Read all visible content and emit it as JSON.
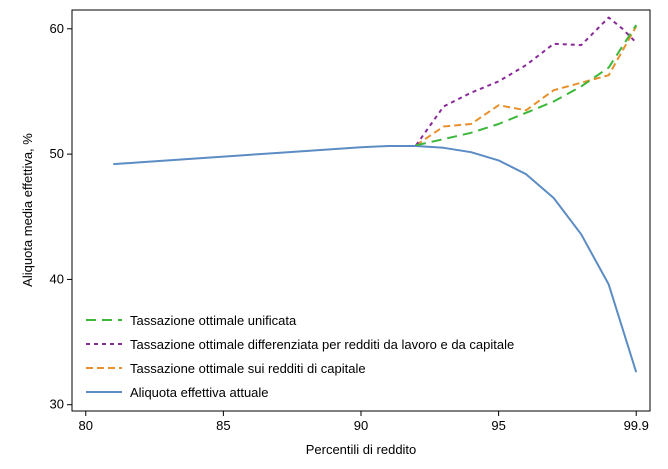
{
  "chart_data": {
    "type": "line",
    "title": "",
    "xlabel": "Percentili di reddito",
    "ylabel": "Aliquota media effettiva, %",
    "xlim": [
      79.5,
      100.5
    ],
    "ylim": [
      29.5,
      61.5
    ],
    "x_ticks": [
      80,
      85,
      90,
      95,
      100
    ],
    "x_tick_labels": [
      "80",
      "85",
      "90",
      "95",
      "99.9"
    ],
    "y_ticks": [
      30,
      40,
      50,
      60
    ],
    "y_tick_labels": [
      "30",
      "40",
      "50",
      "60"
    ],
    "grid": false,
    "legend_position": "bottom-left",
    "series": [
      {
        "name": "Tassazione ottimale unificata",
        "color": "#3cb73c",
        "dash": "10,6",
        "x": [
          92,
          93,
          94,
          95,
          96,
          97,
          98,
          99,
          100
        ],
        "y": [
          50.7,
          51.2,
          51.7,
          52.4,
          53.3,
          54.2,
          55.4,
          56.9,
          60.3
        ]
      },
      {
        "name": "Tassazione ottimale differenziata per redditi da lavoro e da capitale",
        "color": "#8a2a9a",
        "dash": "4,4",
        "x": [
          92,
          93,
          94,
          95,
          96,
          97,
          98,
          98.5,
          99,
          99.5,
          100
        ],
        "y": [
          50.7,
          53.8,
          54.9,
          55.8,
          57.1,
          58.8,
          58.7,
          59.8,
          60.9,
          60.0,
          58.9
        ]
      },
      {
        "name": "Tassazione ottimale sui redditi di capitale",
        "color": "#e8902c",
        "dash": "7,4",
        "x": [
          92,
          93,
          94,
          95,
          96,
          97,
          98,
          99,
          100
        ],
        "y": [
          50.7,
          52.2,
          52.4,
          53.9,
          53.5,
          55.1,
          55.7,
          56.3,
          60.2
        ]
      },
      {
        "name": "Aliquota effettiva attuale",
        "color": "#5b8cc4",
        "dash": "",
        "x": [
          81,
          82,
          83,
          84,
          85,
          86,
          87,
          88,
          89,
          90,
          91,
          92,
          93,
          94,
          95,
          96,
          97,
          98,
          99,
          100
        ],
        "y": [
          49.2,
          49.35,
          49.5,
          49.65,
          49.8,
          49.95,
          50.1,
          50.25,
          50.4,
          50.55,
          50.65,
          50.65,
          50.5,
          50.15,
          49.5,
          48.4,
          46.5,
          43.6,
          39.6,
          32.6
        ]
      }
    ]
  }
}
